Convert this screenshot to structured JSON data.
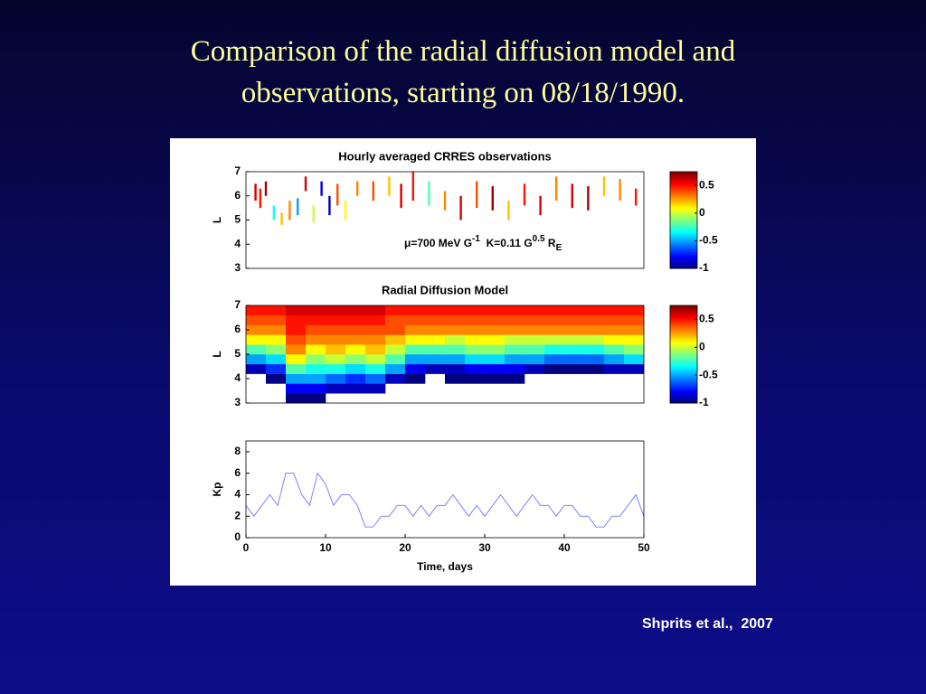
{
  "slide": {
    "title": "Comparison of the radial diffusion model and observations, starting on 08/18/1990.",
    "citation": "Shprits et al.,  2007"
  },
  "chart_data": [
    {
      "type": "segments",
      "title": "Hourly averaged CRRES observations",
      "ylabel": "L",
      "xlim": [
        0,
        50
      ],
      "ylim": [
        3,
        7
      ],
      "yticks": [
        3,
        4,
        5,
        6,
        7
      ],
      "annotation": [
        "μ=700 MeV G",
        "-1",
        "  K=0.11 G",
        "0.5",
        " R",
        "E"
      ],
      "clim": [
        -1,
        0.75
      ],
      "cticks": [
        0.5,
        0,
        -0.5,
        -1
      ],
      "x": [
        1.2,
        1.8,
        2.5,
        3.5,
        4.5,
        5.5,
        6.5,
        7.5,
        8.5,
        9.5,
        10.5,
        11.5,
        12.5,
        14,
        16,
        18,
        19.5,
        21,
        23,
        25,
        27,
        29,
        31,
        33,
        35,
        37,
        39,
        41,
        43,
        45,
        47,
        49
      ],
      "l_low": [
        5.8,
        5.5,
        6.0,
        5.0,
        4.8,
        5.0,
        5.2,
        6.2,
        4.9,
        6.0,
        5.2,
        5.6,
        5.0,
        6.0,
        5.8,
        6.0,
        5.5,
        5.8,
        5.6,
        5.4,
        5.0,
        5.5,
        5.4,
        5.0,
        5.6,
        5.2,
        5.8,
        5.5,
        5.4,
        6.0,
        5.8,
        5.6
      ],
      "l_high": [
        6.5,
        6.3,
        6.6,
        5.6,
        5.3,
        5.8,
        5.9,
        6.8,
        5.6,
        6.6,
        6.0,
        6.5,
        5.8,
        6.6,
        6.6,
        6.8,
        6.5,
        7.0,
        6.6,
        6.2,
        6.0,
        6.6,
        6.4,
        5.8,
        6.5,
        6.0,
        6.8,
        6.5,
        6.4,
        6.8,
        6.7,
        6.3
      ],
      "values": [
        0.6,
        0.5,
        0.7,
        -0.3,
        0.2,
        0.3,
        -0.5,
        0.6,
        0.0,
        -0.8,
        -0.9,
        0.4,
        0.1,
        0.3,
        0.4,
        0.2,
        0.6,
        0.5,
        -0.2,
        0.3,
        0.6,
        0.4,
        0.7,
        0.2,
        0.5,
        0.6,
        0.3,
        0.6,
        0.7,
        0.2,
        0.3,
        0.5
      ]
    },
    {
      "type": "heatmap",
      "title": "Radial Diffusion Model",
      "ylabel": "L",
      "xlim": [
        0,
        50
      ],
      "ylim": [
        3,
        7
      ],
      "yticks": [
        3,
        4,
        5,
        6,
        7
      ],
      "clim": [
        -1,
        0.75
      ],
      "cticks": [
        0.5,
        0,
        -0.5,
        -1
      ],
      "x": [
        1.25,
        3.75,
        6.25,
        8.75,
        11.25,
        13.75,
        16.25,
        18.75,
        21.25,
        23.75,
        26.25,
        28.75,
        31.25,
        33.75,
        36.25,
        38.75,
        41.25,
        43.75,
        46.25,
        48.75
      ],
      "y": [
        3.2,
        3.6,
        4.0,
        4.4,
        4.8,
        5.2,
        5.6,
        6.0,
        6.4,
        6.8
      ],
      "z": [
        [
          null,
          null,
          -1,
          -1,
          null,
          null,
          null,
          null,
          null,
          null,
          null,
          null,
          null,
          null,
          null,
          null,
          null,
          null,
          null,
          null
        ],
        [
          null,
          null,
          -0.8,
          -0.8,
          -0.9,
          -0.9,
          -0.9,
          null,
          null,
          null,
          null,
          null,
          null,
          null,
          null,
          null,
          null,
          null,
          null,
          null
        ],
        [
          null,
          -1,
          -0.5,
          -0.5,
          -0.6,
          -0.7,
          -0.6,
          -0.9,
          -1,
          null,
          -1,
          -1,
          -1,
          -1,
          null,
          null,
          null,
          null,
          null,
          null
        ],
        [
          -0.9,
          -0.7,
          -0.2,
          -0.3,
          -0.3,
          -0.4,
          -0.3,
          -0.5,
          -0.8,
          -0.9,
          -0.9,
          -0.8,
          -0.8,
          -0.8,
          -0.9,
          -1,
          -1,
          -1,
          -0.9,
          -0.9
        ],
        [
          -0.5,
          -0.4,
          0.1,
          -0.1,
          0.0,
          -0.1,
          0.0,
          -0.2,
          -0.5,
          -0.5,
          -0.5,
          -0.4,
          -0.4,
          -0.5,
          -0.5,
          -0.6,
          -0.6,
          -0.6,
          -0.5,
          -0.4
        ],
        [
          -0.2,
          -0.1,
          0.3,
          0.1,
          0.2,
          0.1,
          0.2,
          0.0,
          -0.2,
          -0.2,
          -0.2,
          -0.1,
          -0.1,
          -0.2,
          -0.2,
          -0.3,
          -0.3,
          -0.3,
          -0.2,
          -0.1
        ],
        [
          0.1,
          0.1,
          0.4,
          0.3,
          0.3,
          0.3,
          0.3,
          0.2,
          0.1,
          0.1,
          0.0,
          0.1,
          0.1,
          0.0,
          0.0,
          0.0,
          0.0,
          0.0,
          0.1,
          0.1
        ],
        [
          0.3,
          0.3,
          0.5,
          0.4,
          0.4,
          0.4,
          0.4,
          0.4,
          0.3,
          0.3,
          0.3,
          0.3,
          0.3,
          0.3,
          0.3,
          0.3,
          0.3,
          0.3,
          0.3,
          0.3
        ],
        [
          0.4,
          0.4,
          0.5,
          0.5,
          0.5,
          0.5,
          0.5,
          0.4,
          0.4,
          0.4,
          0.4,
          0.4,
          0.4,
          0.4,
          0.4,
          0.4,
          0.4,
          0.4,
          0.4,
          0.4
        ],
        [
          0.5,
          0.5,
          0.6,
          0.6,
          0.6,
          0.6,
          0.6,
          0.5,
          0.5,
          0.5,
          0.5,
          0.5,
          0.5,
          0.5,
          0.5,
          0.5,
          0.5,
          0.5,
          0.5,
          0.5
        ]
      ]
    },
    {
      "type": "line",
      "ylabel": "Kp",
      "xlabel": "Time, days",
      "color": "#8080ff",
      "xlim": [
        0,
        50
      ],
      "ylim": [
        0,
        9
      ],
      "xticks": [
        0,
        10,
        20,
        30,
        40,
        50
      ],
      "yticks": [
        0,
        2,
        4,
        6,
        8
      ],
      "x": [
        0,
        1,
        2,
        3,
        4,
        5,
        6,
        7,
        8,
        9,
        10,
        11,
        12,
        13,
        14,
        15,
        16,
        17,
        18,
        19,
        20,
        21,
        22,
        23,
        24,
        25,
        26,
        27,
        28,
        29,
        30,
        31,
        32,
        33,
        34,
        35,
        36,
        37,
        38,
        39,
        40,
        41,
        42,
        43,
        44,
        45,
        46,
        47,
        48,
        49,
        50
      ],
      "values": [
        3,
        2,
        3,
        4,
        3,
        6,
        6,
        4,
        3,
        6,
        5,
        3,
        4,
        4,
        3,
        1,
        1,
        2,
        2,
        3,
        3,
        2,
        3,
        2,
        3,
        3,
        4,
        3,
        2,
        3,
        2,
        3,
        4,
        3,
        2,
        3,
        4,
        3,
        3,
        2,
        3,
        3,
        2,
        2,
        1,
        1,
        2,
        2,
        3,
        4,
        2
      ]
    }
  ]
}
